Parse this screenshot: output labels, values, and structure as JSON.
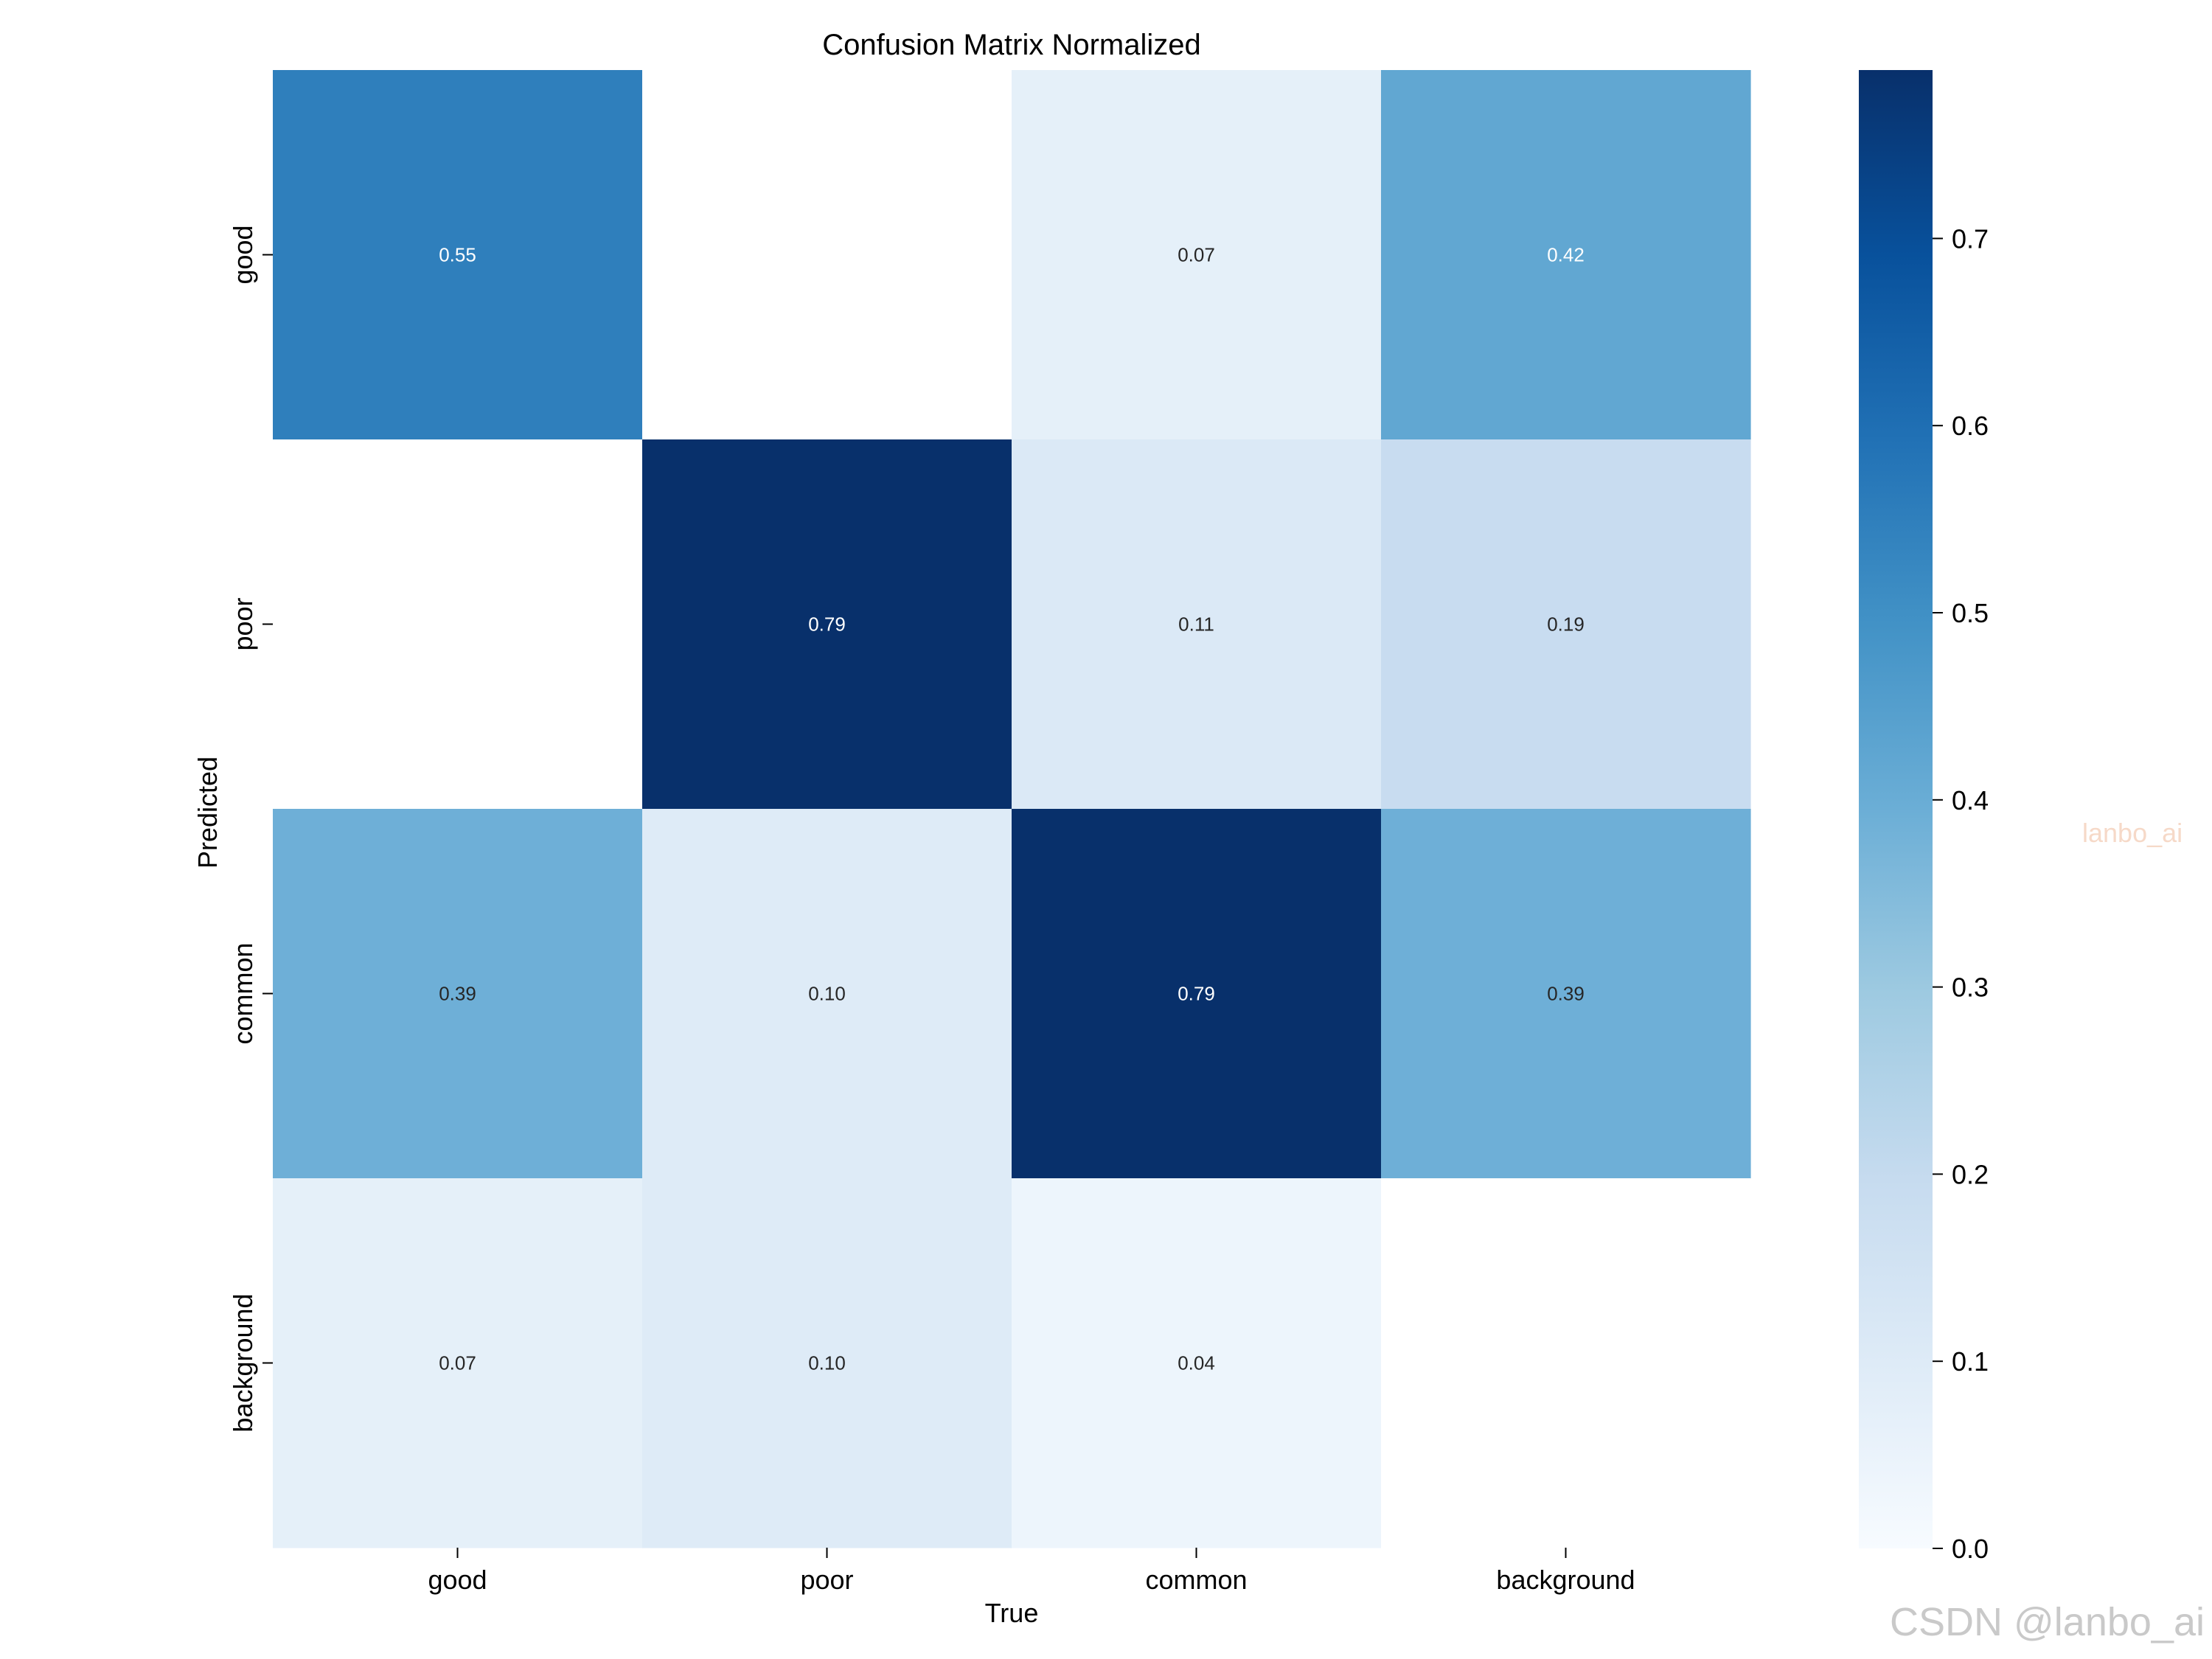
{
  "chart_data": {
    "type": "heatmap",
    "title": "Confusion Matrix Normalized",
    "xlabel": "True",
    "ylabel": "Predicted",
    "x_categories": [
      "good",
      "poor",
      "common",
      "background"
    ],
    "y_categories": [
      "good",
      "poor",
      "common",
      "background"
    ],
    "values": [
      [
        0.55,
        null,
        0.07,
        0.42
      ],
      [
        null,
        0.79,
        0.11,
        0.19
      ],
      [
        0.39,
        0.1,
        0.79,
        0.39
      ],
      [
        0.07,
        0.1,
        0.04,
        null
      ]
    ],
    "colormap": "Blues",
    "colorbar": {
      "range": [
        0.0,
        0.79
      ],
      "ticks": [
        0.0,
        0.1,
        0.2,
        0.3,
        0.4,
        0.5,
        0.6,
        0.7
      ],
      "tick_labels": [
        "0.0",
        "0.1",
        "0.2",
        "0.3",
        "0.4",
        "0.5",
        "0.6",
        "0.7"
      ]
    }
  },
  "watermarks": {
    "side": "lanbo_ai",
    "corner": "CSDN @lanbo_ai"
  }
}
